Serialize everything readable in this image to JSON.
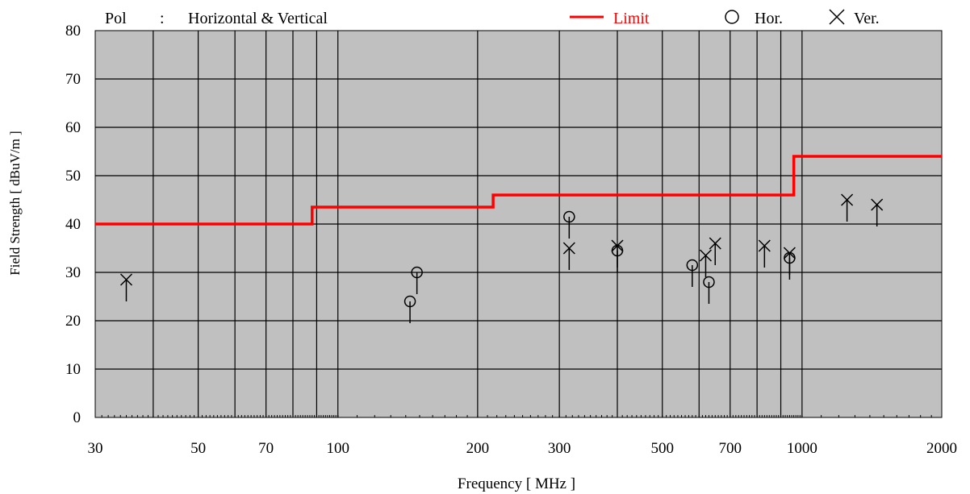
{
  "header": {
    "pol_label": "Pol",
    "pol_sep": ":",
    "pol_value": "Horizontal & Vertical"
  },
  "legend": {
    "limit_label": "Limit",
    "hor_label": "Hor.",
    "ver_label": "Ver.",
    "limit_color": "#ff0000"
  },
  "chart_data": {
    "type": "scatter",
    "xlabel": "Frequency [ MHz ]",
    "ylabel": "Field Strength [ dBuV/m ]",
    "x_scale": "log",
    "xlim": [
      30,
      2000
    ],
    "ylim": [
      0,
      80
    ],
    "x_ticks": [
      30,
      50,
      70,
      100,
      200,
      300,
      500,
      700,
      1000,
      2000
    ],
    "y_ticks": [
      0,
      10,
      20,
      30,
      40,
      50,
      60,
      70,
      80
    ],
    "grid": true,
    "plot_background": "#c0c0c0",
    "legend_position": "top",
    "limit": {
      "name": "Limit",
      "color": "#ff0000",
      "steps": [
        {
          "from": 30,
          "to": 88,
          "value": 40
        },
        {
          "from": 88,
          "to": 216,
          "value": 43.5
        },
        {
          "from": 216,
          "to": 960,
          "value": 46
        },
        {
          "from": 960,
          "to": 2000,
          "value": 54
        }
      ]
    },
    "series": [
      {
        "name": "Hor.",
        "marker": "circle",
        "points": [
          {
            "x": 143,
            "y": 24
          },
          {
            "x": 148,
            "y": 30
          },
          {
            "x": 315,
            "y": 41.5
          },
          {
            "x": 400,
            "y": 34.5
          },
          {
            "x": 580,
            "y": 31.5
          },
          {
            "x": 630,
            "y": 28
          },
          {
            "x": 940,
            "y": 33
          }
        ]
      },
      {
        "name": "Ver.",
        "marker": "cross",
        "points": [
          {
            "x": 35,
            "y": 28.5
          },
          {
            "x": 315,
            "y": 35
          },
          {
            "x": 400,
            "y": 35.5
          },
          {
            "x": 620,
            "y": 33.5
          },
          {
            "x": 650,
            "y": 36
          },
          {
            "x": 830,
            "y": 35.5
          },
          {
            "x": 940,
            "y": 34
          },
          {
            "x": 1250,
            "y": 45
          },
          {
            "x": 1450,
            "y": 44
          }
        ]
      }
    ]
  }
}
